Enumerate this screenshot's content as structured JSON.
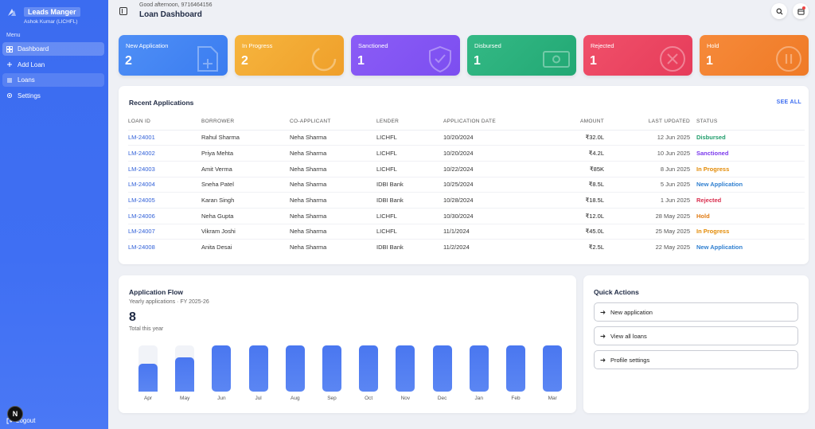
{
  "app": {
    "title": "Leads Manger",
    "user": "Ashok Kumar (LICHFL)"
  },
  "sidebar": {
    "menu_label": "Menu",
    "items": [
      {
        "label": "Dashboard",
        "icon": "grid-icon"
      },
      {
        "label": "Add Loan",
        "icon": "plus-icon"
      },
      {
        "label": "Loans",
        "icon": "list-icon"
      },
      {
        "label": "Settings",
        "icon": "gear-icon"
      }
    ],
    "logout": "Logout",
    "badge": "N"
  },
  "header": {
    "greeting": "Good afternoon, 9716464156",
    "title": "Loan Dashboard"
  },
  "stats": [
    {
      "label": "New Application",
      "value": "2",
      "color": "#4f8ff6",
      "color2": "#3a7cf0",
      "icon": "file-plus-icon"
    },
    {
      "label": "In Progress",
      "value": "2",
      "color": "#f6b53e",
      "color2": "#ef9f2a",
      "icon": "progress-icon"
    },
    {
      "label": "Sanctioned",
      "value": "1",
      "color": "#8b5cf6",
      "color2": "#7c4ef0",
      "icon": "shield-check-icon"
    },
    {
      "label": "Disbursed",
      "value": "1",
      "color": "#34b985",
      "color2": "#22a874",
      "icon": "cash-icon"
    },
    {
      "label": "Rejected",
      "value": "1",
      "color": "#f0506a",
      "color2": "#e63c5a",
      "icon": "x-circle-icon"
    },
    {
      "label": "Hold",
      "value": "1",
      "color": "#f68a3a",
      "color2": "#ef7a26",
      "icon": "pause-icon"
    }
  ],
  "recent": {
    "title": "Recent Applications",
    "see_all": "SEE ALL",
    "columns": [
      "LOAN ID",
      "BORROWER",
      "CO-APPLICANT",
      "LENDER",
      "APPLICATION DATE",
      "AMOUNT",
      "LAST UPDATED",
      "STATUS"
    ],
    "rows": [
      {
        "id": "LM-24001",
        "borrower": "Rahul Sharma",
        "co": "Neha Sharma",
        "lender": "LICHFL",
        "date": "10/20/2024",
        "amount": "₹32.0L",
        "updated": "12 Jun 2025",
        "status": "Disbursed"
      },
      {
        "id": "LM-24002",
        "borrower": "Priya Mehta",
        "co": "Neha Sharma",
        "lender": "LICHFL",
        "date": "10/20/2024",
        "amount": "₹4.2L",
        "updated": "10 Jun 2025",
        "status": "Sanctioned"
      },
      {
        "id": "LM-24003",
        "borrower": "Amit Verma",
        "co": "Neha Sharma",
        "lender": "LICHFL",
        "date": "10/22/2024",
        "amount": "₹85K",
        "updated": "8 Jun 2025",
        "status": "In Progress"
      },
      {
        "id": "LM-24004",
        "borrower": "Sneha Patel",
        "co": "Neha Sharma",
        "lender": "IDBI Bank",
        "date": "10/25/2024",
        "amount": "₹8.5L",
        "updated": "5 Jun 2025",
        "status": "New Application"
      },
      {
        "id": "LM-24005",
        "borrower": "Karan Singh",
        "co": "Neha Sharma",
        "lender": "IDBI Bank",
        "date": "10/28/2024",
        "amount": "₹18.5L",
        "updated": "1 Jun 2025",
        "status": "Rejected"
      },
      {
        "id": "LM-24006",
        "borrower": "Neha Gupta",
        "co": "Neha Sharma",
        "lender": "LICHFL",
        "date": "10/30/2024",
        "amount": "₹12.0L",
        "updated": "28 May 2025",
        "status": "Hold"
      },
      {
        "id": "LM-24007",
        "borrower": "Vikram Joshi",
        "co": "Neha Sharma",
        "lender": "LICHFL",
        "date": "11/1/2024",
        "amount": "₹45.0L",
        "updated": "25 May 2025",
        "status": "In Progress"
      },
      {
        "id": "LM-24008",
        "borrower": "Anita Desai",
        "co": "Neha Sharma",
        "lender": "IDBI Bank",
        "date": "11/2/2024",
        "amount": "₹2.5L",
        "updated": "22 May 2025",
        "status": "New Application"
      }
    ],
    "status_colors": {
      "Disbursed": "#1f9d6b",
      "Sanctioned": "#7c3aed",
      "In Progress": "#e38b06",
      "New Application": "#2f7fd0",
      "Rejected": "#d92e4e",
      "Hold": "#e07a12"
    }
  },
  "flow": {
    "title": "Application Flow",
    "subtitle": "Yearly applications · FY 2025-26",
    "total": "8",
    "total_caption": "Total this year"
  },
  "chart_data": {
    "type": "bar",
    "categories": [
      "Apr",
      "May",
      "Jun",
      "Jul",
      "Aug",
      "Sep",
      "Oct",
      "Nov",
      "Dec",
      "Jan",
      "Feb",
      "Mar"
    ],
    "values": [
      0.6,
      0.75,
      1,
      1,
      1,
      1,
      1,
      1,
      1,
      1,
      1,
      1
    ],
    "ylim": [
      0,
      1
    ]
  },
  "quick": {
    "title": "Quick Actions",
    "items": [
      "New application",
      "View all loans",
      "Profile settings"
    ]
  }
}
